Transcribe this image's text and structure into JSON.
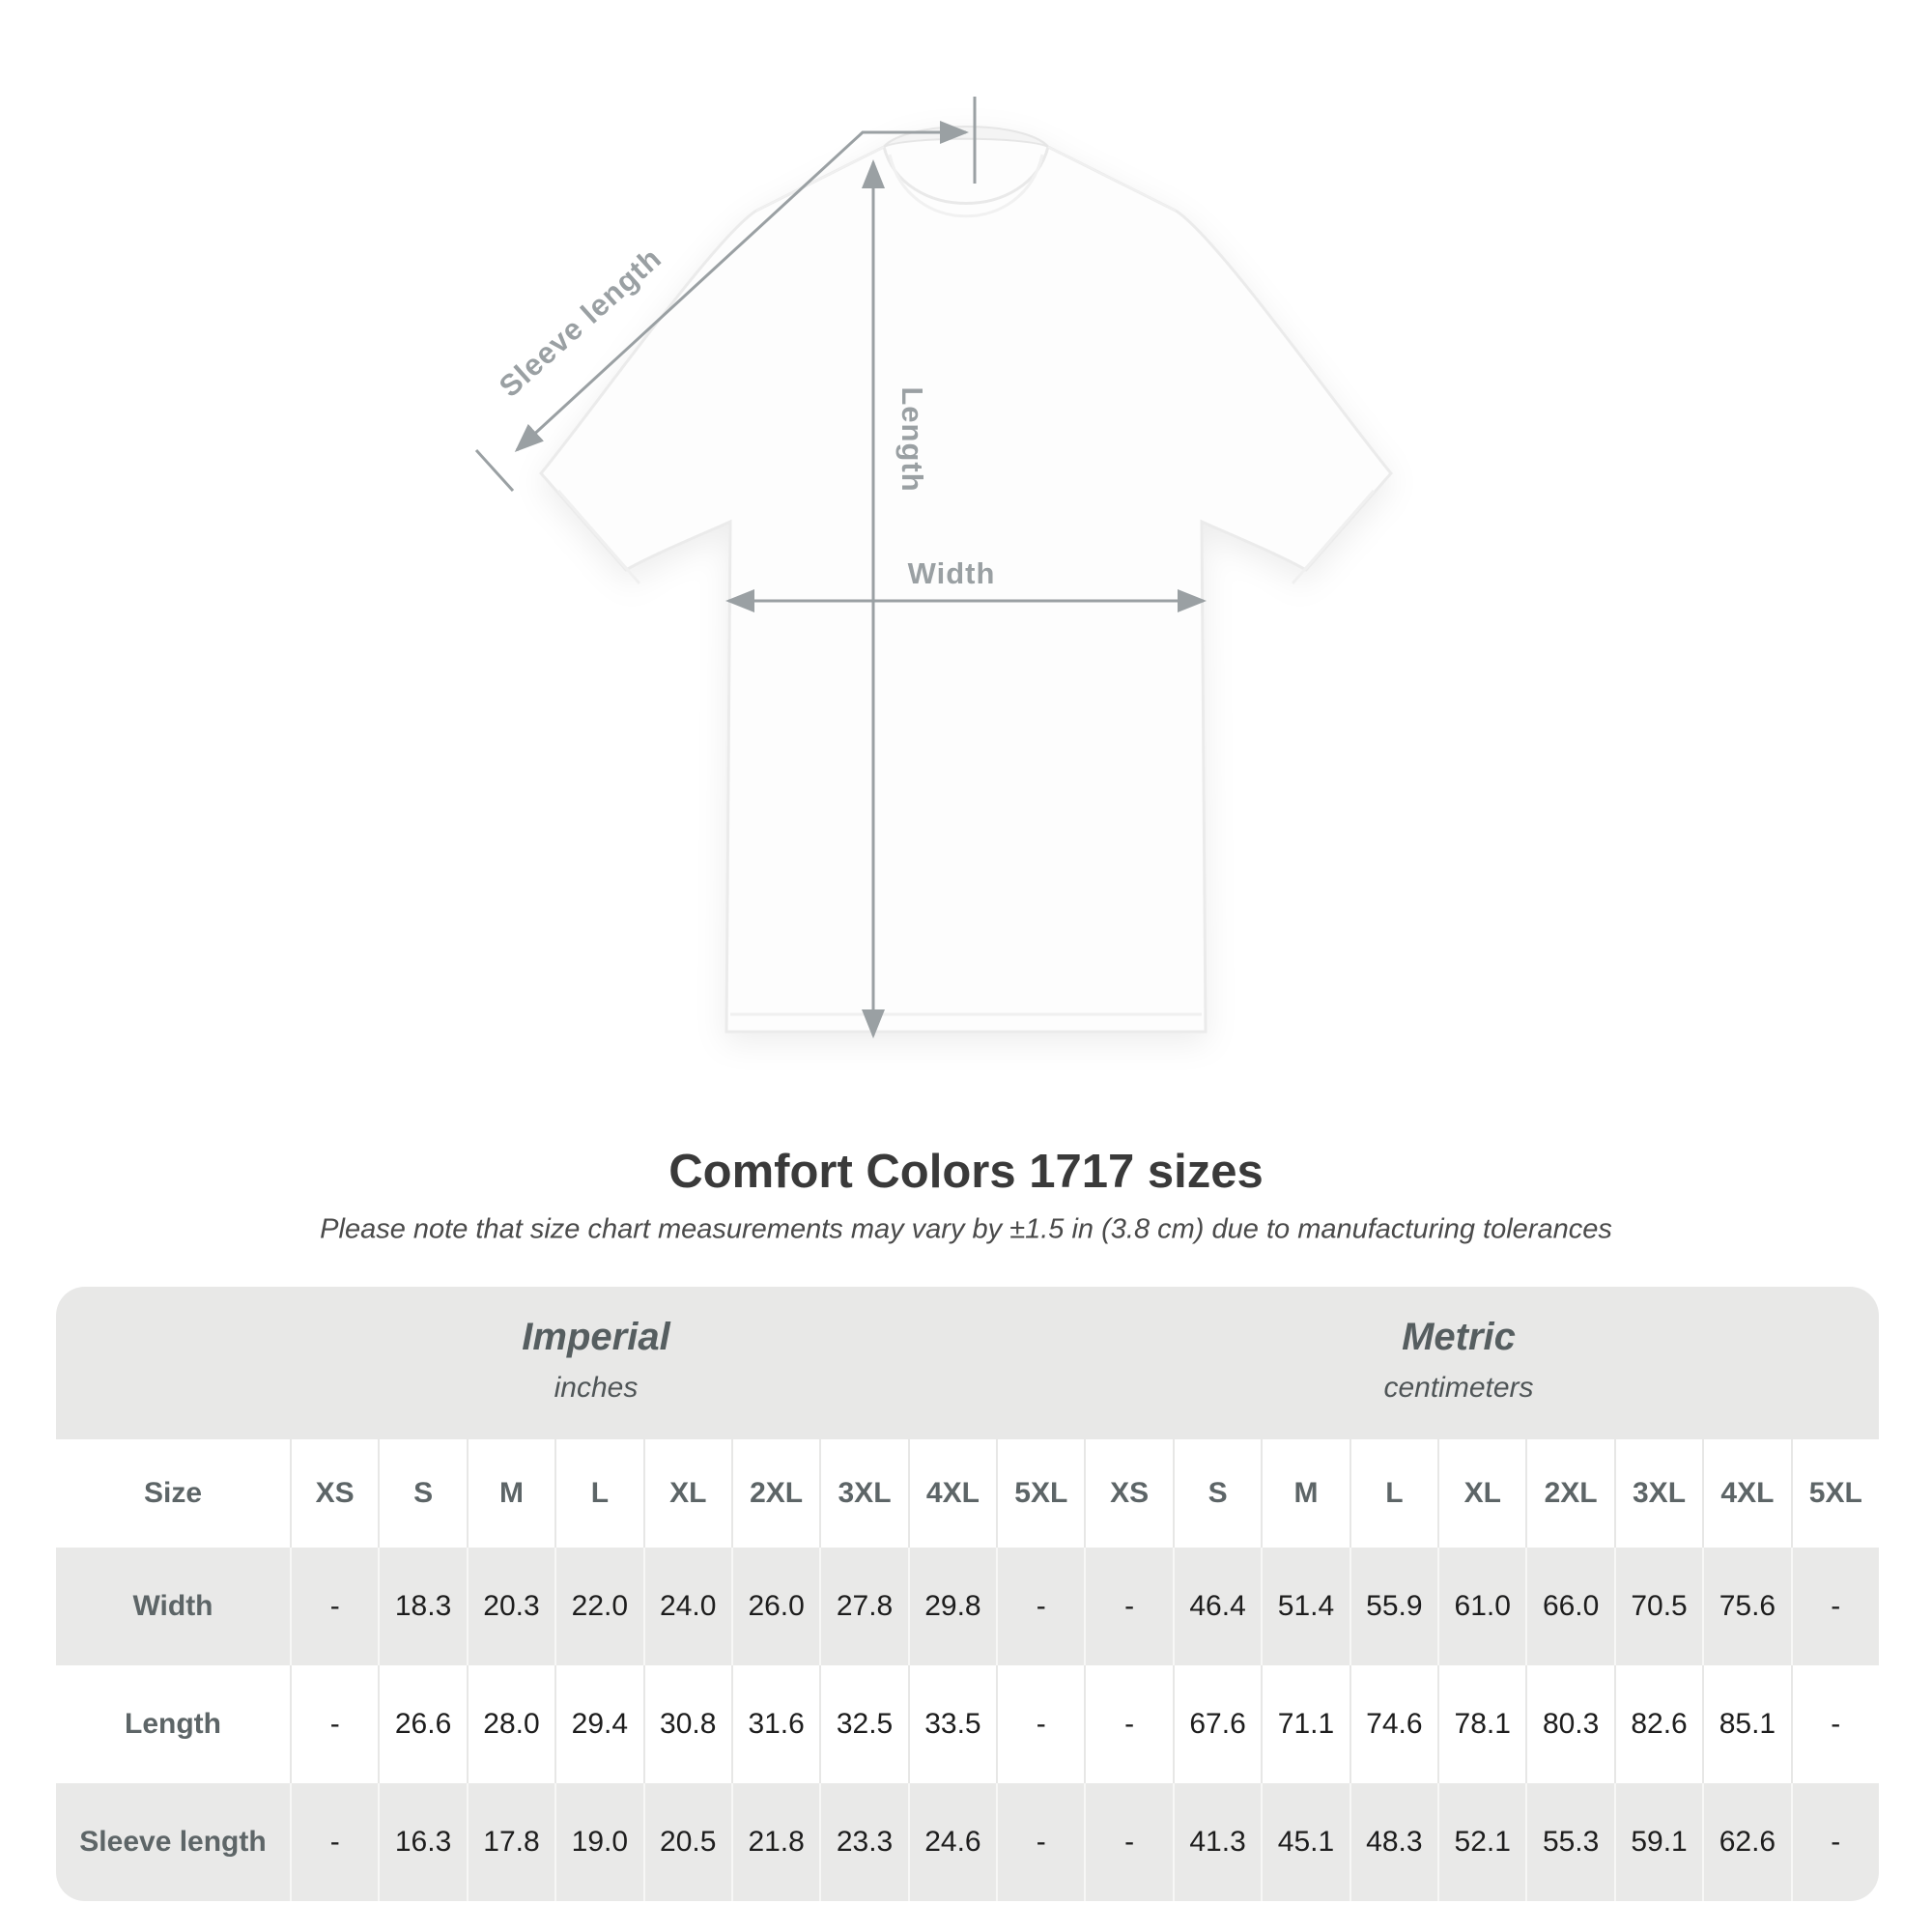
{
  "diagram": {
    "sleeve_length_label": "Sleeve length",
    "length_label": "Length",
    "width_label": "Width"
  },
  "heading": {
    "title": "Comfort Colors 1717 sizes",
    "subtitle": "Please note that size chart measurements may vary by ±1.5 in (3.8 cm) due to manufacturing tolerances"
  },
  "table": {
    "size_label": "Size",
    "unit_groups": [
      {
        "name": "Imperial",
        "unit": "inches"
      },
      {
        "name": "Metric",
        "unit": "centimeters"
      }
    ],
    "sizes": [
      "XS",
      "S",
      "M",
      "L",
      "XL",
      "2XL",
      "3XL",
      "4XL",
      "5XL"
    ],
    "rows": [
      {
        "label": "Width",
        "imperial": [
          "-",
          "18.3",
          "20.3",
          "22.0",
          "24.0",
          "26.0",
          "27.8",
          "29.8",
          "-"
        ],
        "metric": [
          "-",
          "46.4",
          "51.4",
          "55.9",
          "61.0",
          "66.0",
          "70.5",
          "75.6",
          "-"
        ]
      },
      {
        "label": "Length",
        "imperial": [
          "-",
          "26.6",
          "28.0",
          "29.4",
          "30.8",
          "31.6",
          "32.5",
          "33.5",
          "-"
        ],
        "metric": [
          "-",
          "67.6",
          "71.1",
          "74.6",
          "78.1",
          "80.3",
          "82.6",
          "85.1",
          "-"
        ]
      },
      {
        "label": "Sleeve length",
        "imperial": [
          "-",
          "16.3",
          "17.8",
          "19.0",
          "20.5",
          "21.8",
          "23.3",
          "24.6",
          "-"
        ],
        "metric": [
          "-",
          "41.3",
          "45.1",
          "48.3",
          "52.1",
          "55.3",
          "59.1",
          "62.6",
          "-"
        ]
      }
    ]
  },
  "colors": {
    "measure_gray": "#9aa0a3",
    "table_band_gray": "#e8e8e7",
    "row_stripe_gray": "#e9e9e8",
    "header_text_gray": "#5d6567",
    "value_text": "#1d1d1d",
    "title_text": "#3a3a3a"
  }
}
